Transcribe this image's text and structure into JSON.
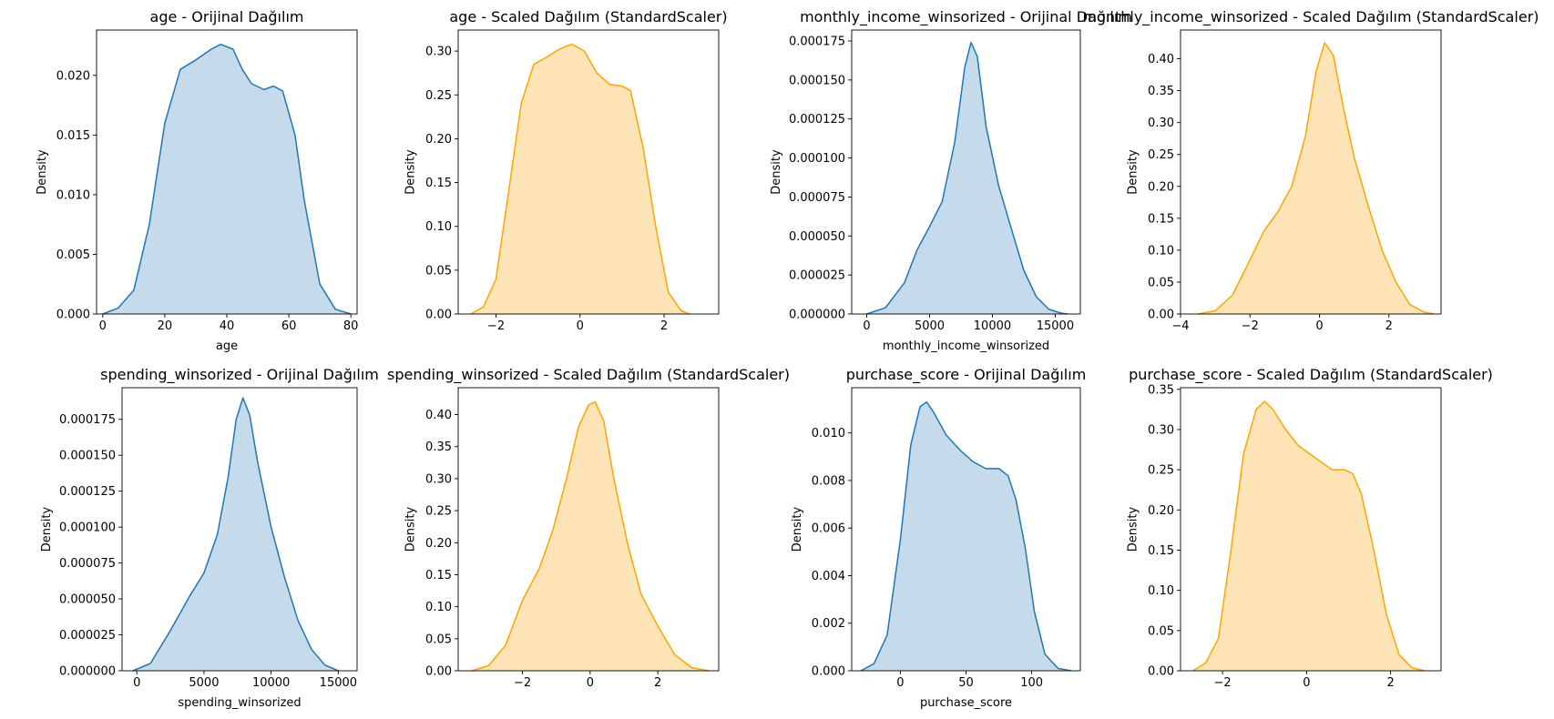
{
  "chart_data": [
    {
      "type": "area",
      "title": "age - Orijinal Dağılım",
      "xlabel": "age",
      "ylabel": "Density",
      "xlim": [
        -2,
        82
      ],
      "ylim": [
        0,
        0.0238
      ],
      "xticks": [
        0,
        20,
        40,
        60,
        80
      ],
      "xtick_labels": [
        "0",
        "20",
        "40",
        "60",
        "80"
      ],
      "yticks": [
        0,
        0.005,
        0.01,
        0.015,
        0.02
      ],
      "ytick_labels": [
        "0.000",
        "0.005",
        "0.010",
        "0.015",
        "0.020"
      ],
      "color": "#1f77b4",
      "fill_color": "#c5daeb",
      "x": [
        0,
        5,
        10,
        15,
        20,
        25,
        30,
        35,
        38,
        42,
        45,
        48,
        52,
        55,
        58,
        62,
        65,
        70,
        75,
        80
      ],
      "y": [
        0,
        0.0005,
        0.002,
        0.0075,
        0.016,
        0.0205,
        0.0213,
        0.0222,
        0.0226,
        0.0222,
        0.0205,
        0.0193,
        0.0188,
        0.0191,
        0.0187,
        0.015,
        0.0095,
        0.0025,
        0.0004,
        0
      ]
    },
    {
      "type": "area",
      "title": "age - Scaled Dağılım (StandardScaler)",
      "xlabel": "",
      "ylabel": "Density",
      "xlim": [
        -2.9,
        3.3
      ],
      "ylim": [
        0,
        0.324
      ],
      "xticks": [
        -2,
        0,
        2
      ],
      "xtick_labels": [
        "−2",
        "0",
        "2"
      ],
      "yticks": [
        0,
        0.05,
        0.1,
        0.15,
        0.2,
        0.25,
        0.3
      ],
      "ytick_labels": [
        "0.00",
        "0.05",
        "0.10",
        "0.15",
        "0.20",
        "0.25",
        "0.30"
      ],
      "color": "#ffa500",
      "fill_color": "#ffe4b8",
      "x": [
        -2.6,
        -2.3,
        -2.0,
        -1.7,
        -1.4,
        -1.1,
        -0.8,
        -0.5,
        -0.2,
        0.1,
        0.4,
        0.7,
        1.0,
        1.2,
        1.5,
        1.8,
        2.1,
        2.4,
        2.6
      ],
      "y": [
        0,
        0.008,
        0.04,
        0.14,
        0.24,
        0.285,
        0.293,
        0.302,
        0.308,
        0.3,
        0.275,
        0.262,
        0.26,
        0.255,
        0.19,
        0.1,
        0.025,
        0.004,
        0
      ]
    },
    {
      "type": "area",
      "title": "monthly_income_winsorized - Orijinal Dağılım",
      "xlabel": "monthly_income_winsorized",
      "ylabel": "Density",
      "xlim": [
        -1200,
        17000
      ],
      "ylim": [
        0,
        0.000182
      ],
      "xticks": [
        0,
        5000,
        10000,
        15000
      ],
      "xtick_labels": [
        "0",
        "5000",
        "10000",
        "15000"
      ],
      "yticks": [
        0,
        2.5e-05,
        5e-05,
        7.5e-05,
        0.0001,
        0.000125,
        0.00015,
        0.000175
      ],
      "ytick_labels": [
        "0.000000",
        "0.000025",
        "0.000050",
        "0.000075",
        "0.000100",
        "0.000125",
        "0.000150",
        "0.000175"
      ],
      "color": "#1f77b4",
      "fill_color": "#c5daeb",
      "x": [
        0,
        1500,
        3000,
        4000,
        5000,
        6000,
        7000,
        7800,
        8300,
        8800,
        9500,
        10500,
        11500,
        12500,
        13500,
        14500,
        15500,
        16000
      ],
      "y": [
        0,
        4e-06,
        2e-05,
        4.1e-05,
        5.6e-05,
        7.2e-05,
        0.00011,
        0.000158,
        0.000174,
        0.000165,
        0.00012,
        8.2e-05,
        5.5e-05,
        2.8e-05,
        1.1e-05,
        3e-06,
        5e-07,
        0
      ]
    },
    {
      "type": "area",
      "title": "monthly_income_winsorized - Scaled Dağılım (StandardScaler)",
      "xlabel": "",
      "ylabel": "Density",
      "xlim": [
        -4,
        3.5
      ],
      "ylim": [
        0,
        0.445
      ],
      "xticks": [
        -4,
        -2,
        0,
        2
      ],
      "xtick_labels": [
        "−4",
        "−2",
        "0",
        "2"
      ],
      "yticks": [
        0,
        0.05,
        0.1,
        0.15,
        0.2,
        0.25,
        0.3,
        0.35,
        0.4
      ],
      "ytick_labels": [
        "0.00",
        "0.05",
        "0.10",
        "0.15",
        "0.20",
        "0.25",
        "0.30",
        "0.35",
        "0.40"
      ],
      "color": "#ffa500",
      "fill_color": "#ffe4b8",
      "x": [
        -3.5,
        -3.0,
        -2.5,
        -2.0,
        -1.6,
        -1.2,
        -0.8,
        -0.4,
        -0.1,
        0.15,
        0.4,
        0.7,
        1.0,
        1.4,
        1.8,
        2.2,
        2.6,
        3.0,
        3.3
      ],
      "y": [
        0,
        0.005,
        0.03,
        0.085,
        0.13,
        0.16,
        0.2,
        0.28,
        0.38,
        0.425,
        0.405,
        0.32,
        0.245,
        0.17,
        0.1,
        0.05,
        0.015,
        0.003,
        0
      ]
    },
    {
      "type": "area",
      "title": "spending_winsorized - Orijinal Dağılım",
      "xlabel": "spending_winsorized",
      "ylabel": "Density",
      "xlim": [
        -1100,
        16400
      ],
      "ylim": [
        0,
        0.000197
      ],
      "xticks": [
        0,
        5000,
        10000,
        15000
      ],
      "xtick_labels": [
        "0",
        "5000",
        "10000",
        "15000"
      ],
      "yticks": [
        0,
        2.5e-05,
        5e-05,
        7.5e-05,
        0.0001,
        0.000125,
        0.00015,
        0.000175
      ],
      "ytick_labels": [
        "0.000000",
        "0.000025",
        "0.000050",
        "0.000075",
        "0.000100",
        "0.000125",
        "0.000150",
        "0.000175"
      ],
      "color": "#1f77b4",
      "fill_color": "#c5daeb",
      "x": [
        -300,
        1000,
        2500,
        4000,
        5000,
        6000,
        6800,
        7400,
        7900,
        8400,
        9000,
        10000,
        11000,
        12000,
        13000,
        14000,
        15000
      ],
      "y": [
        0,
        5e-06,
        2.8e-05,
        5.3e-05,
        6.8e-05,
        9.5e-05,
        0.000135,
        0.000175,
        0.00019,
        0.000178,
        0.000145,
        0.0001,
        6.5e-05,
        3.5e-05,
        1.5e-05,
        4e-06,
        0
      ]
    },
    {
      "type": "area",
      "title": "spending_winsorized - Scaled Dağılım (StandardScaler)",
      "xlabel": "",
      "ylabel": "Density",
      "xlim": [
        -3.9,
        3.8
      ],
      "ylim": [
        0,
        0.442
      ],
      "xticks": [
        -2,
        0,
        2
      ],
      "xtick_labels": [
        "−2",
        "0",
        "2"
      ],
      "yticks": [
        0,
        0.05,
        0.1,
        0.15,
        0.2,
        0.25,
        0.3,
        0.35,
        0.4
      ],
      "ytick_labels": [
        "0.00",
        "0.05",
        "0.10",
        "0.15",
        "0.20",
        "0.25",
        "0.30",
        "0.35",
        "0.40"
      ],
      "color": "#ffa500",
      "fill_color": "#ffe4b8",
      "x": [
        -3.5,
        -3.0,
        -2.5,
        -2.0,
        -1.5,
        -1.1,
        -0.7,
        -0.35,
        -0.05,
        0.15,
        0.4,
        0.7,
        1.1,
        1.5,
        2.0,
        2.5,
        3.0,
        3.5
      ],
      "y": [
        0,
        0.008,
        0.04,
        0.11,
        0.16,
        0.22,
        0.3,
        0.38,
        0.415,
        0.42,
        0.39,
        0.3,
        0.2,
        0.12,
        0.07,
        0.025,
        0.005,
        0
      ]
    },
    {
      "type": "area",
      "title": "purchase_score - Orijinal Dağılım",
      "xlabel": "purchase_score",
      "ylabel": "Density",
      "xlim": [
        -37,
        137
      ],
      "ylim": [
        0,
        0.0119
      ],
      "xticks": [
        0,
        50,
        100
      ],
      "xtick_labels": [
        "0",
        "50",
        "100"
      ],
      "yticks": [
        0,
        0.002,
        0.004,
        0.006,
        0.008,
        0.01
      ],
      "ytick_labels": [
        "0.000",
        "0.002",
        "0.004",
        "0.006",
        "0.008",
        "0.010"
      ],
      "color": "#1f77b4",
      "fill_color": "#c5daeb",
      "x": [
        -30,
        -20,
        -10,
        0,
        8,
        15,
        20,
        25,
        35,
        45,
        55,
        65,
        75,
        82,
        88,
        95,
        102,
        110,
        120,
        130
      ],
      "y": [
        0,
        0.0003,
        0.0015,
        0.0055,
        0.0095,
        0.0111,
        0.0113,
        0.0109,
        0.0099,
        0.0093,
        0.0088,
        0.0085,
        0.0085,
        0.0082,
        0.0072,
        0.0052,
        0.0025,
        0.0007,
        0.0001,
        0
      ]
    },
    {
      "type": "area",
      "title": "purchase_score - Scaled Dağılım (StandardScaler)",
      "xlabel": "",
      "ylabel": "Density",
      "xlim": [
        -3.0,
        3.2
      ],
      "ylim": [
        0,
        0.352
      ],
      "xticks": [
        -2,
        0,
        2
      ],
      "xtick_labels": [
        "−2",
        "0",
        "2"
      ],
      "yticks": [
        0,
        0.05,
        0.1,
        0.15,
        0.2,
        0.25,
        0.3,
        0.35
      ],
      "ytick_labels": [
        "0.00",
        "0.05",
        "0.10",
        "0.15",
        "0.20",
        "0.25",
        "0.30",
        "0.35"
      ],
      "color": "#ffa500",
      "fill_color": "#ffe4b8",
      "x": [
        -2.7,
        -2.4,
        -2.1,
        -1.8,
        -1.5,
        -1.2,
        -1.0,
        -0.8,
        -0.5,
        -0.2,
        0.2,
        0.6,
        0.9,
        1.1,
        1.3,
        1.6,
        1.9,
        2.2,
        2.5,
        2.8
      ],
      "y": [
        0,
        0.01,
        0.04,
        0.15,
        0.27,
        0.325,
        0.335,
        0.325,
        0.3,
        0.28,
        0.265,
        0.25,
        0.25,
        0.245,
        0.22,
        0.15,
        0.07,
        0.02,
        0.004,
        0
      ]
    }
  ]
}
